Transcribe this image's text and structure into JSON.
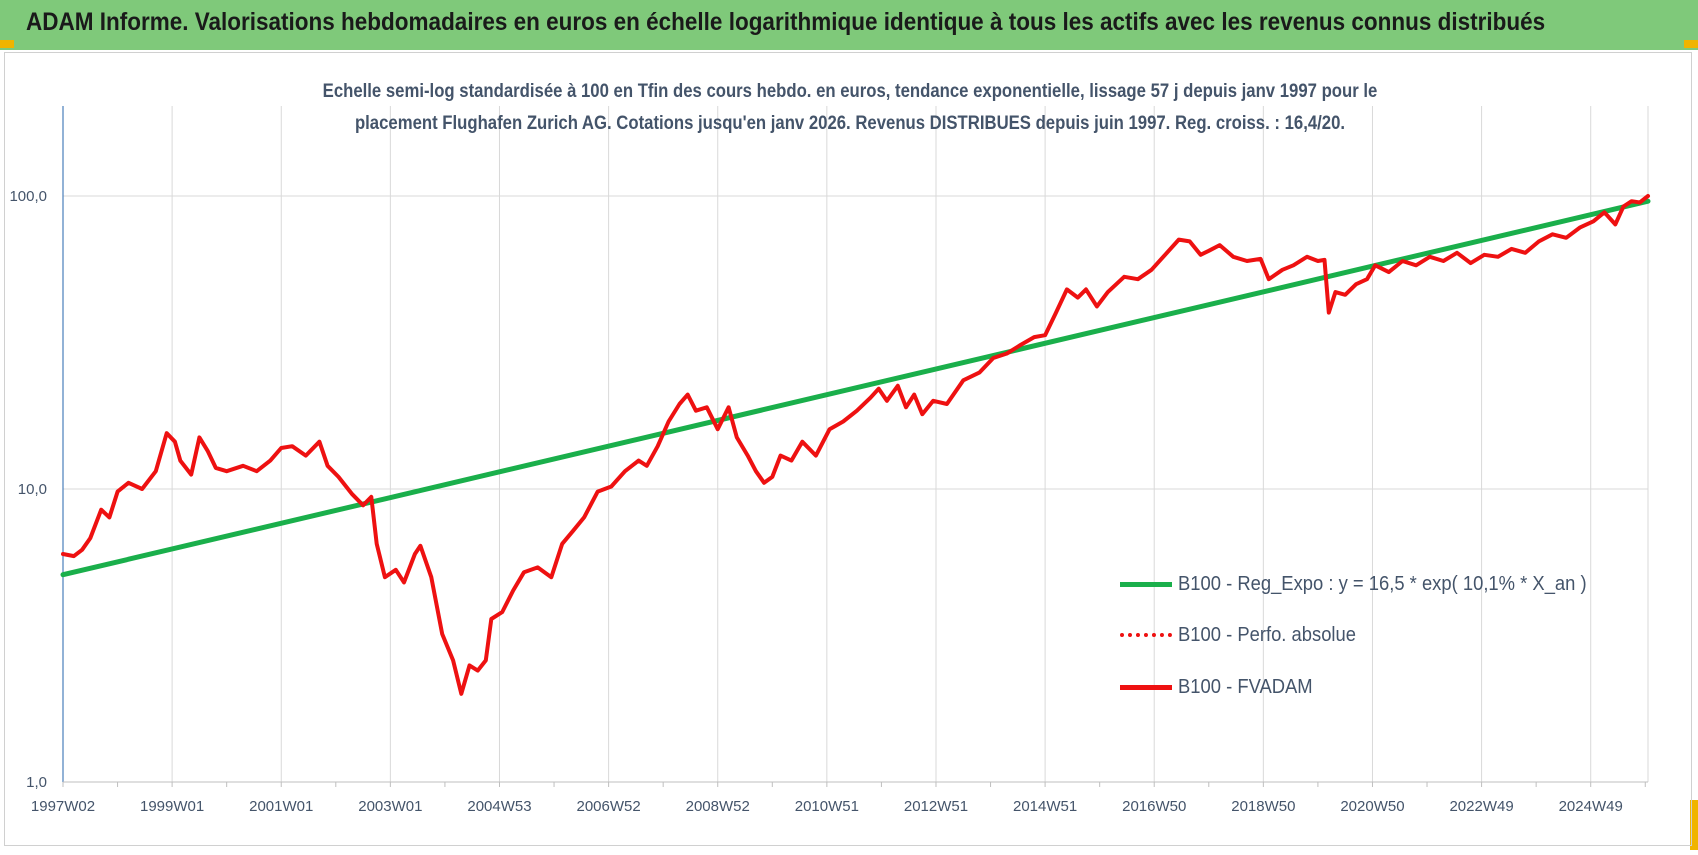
{
  "banner": {
    "title": "ADAM Informe. Valorisations hebdomadaires en euros en échelle logarithmique identique à tous les actifs avec les revenus connus distribués"
  },
  "colors": {
    "banner": "#7fc97a",
    "corner": "#f0b400",
    "regression": "#1aaf4b",
    "fvadam": "#ee1111",
    "perf": "#ee1111",
    "text": "#44546a",
    "grid": "#d9d9d9",
    "axis": "#4a7ebb"
  },
  "chart_data": {
    "type": "line",
    "title": "Echelle semi-log standardisée à 100 en Tfin des cours hebdo. en euros, tendance exponentielle, lissage 57 j depuis janv 1997 pour le placement Flughafen Zurich AG. Cotations jusqu'en janv 2026. Revenus DISTRIBUES depuis juin 1997. Reg. croiss. : 16,4/20.",
    "title_lines": [
      "Echelle semi-log standardisée à 100 en Tfin des cours hebdo. en euros, tendance exponentielle, lissage 57 j depuis janv 1997 pour le",
      "placement Flughafen Zurich AG. Cotations jusqu'en janv 2026. Revenus DISTRIBUES depuis juin 1997. Reg. croiss. : 16,4/20."
    ],
    "y_scale": "log",
    "ylim": [
      1,
      200
    ],
    "xlim": [
      1997.0,
      2026.05
    ],
    "grid": true,
    "legend_position": "right",
    "y_ticks": [
      {
        "value": 1,
        "label": "1,0"
      },
      {
        "value": 10,
        "label": "10,0"
      },
      {
        "value": 100,
        "label": "100,0"
      }
    ],
    "x_ticks": [
      {
        "value": 1997.0,
        "label": "1997W02"
      },
      {
        "value": 1999.0,
        "label": "1999W01"
      },
      {
        "value": 2001.0,
        "label": "2001W01"
      },
      {
        "value": 2003.0,
        "label": "2003W01"
      },
      {
        "value": 2005.0,
        "label": "2004W53"
      },
      {
        "value": 2007.0,
        "label": "2006W52"
      },
      {
        "value": 2009.0,
        "label": "2008W52"
      },
      {
        "value": 2011.0,
        "label": "2010W51"
      },
      {
        "value": 2013.0,
        "label": "2012W51"
      },
      {
        "value": 2015.0,
        "label": "2014W51"
      },
      {
        "value": 2017.0,
        "label": "2016W50"
      },
      {
        "value": 2019.0,
        "label": "2018W50"
      },
      {
        "value": 2021.0,
        "label": "2020W50"
      },
      {
        "value": 2023.0,
        "label": "2022W49"
      },
      {
        "value": 2025.0,
        "label": "2024W49"
      }
    ],
    "series": [
      {
        "name": "B100 - Reg_Expo : y = 16,5 * exp( 10,1% *  X_an )",
        "style": "solid-green",
        "points": [
          [
            1997.0,
            5.1
          ],
          [
            2026.05,
            96.0
          ]
        ]
      },
      {
        "name": "B100 - Perfo. absolue",
        "style": "dotted-red",
        "points": []
      },
      {
        "name": "B100 - FVADAM",
        "style": "solid-red",
        "points": [
          [
            1997.0,
            6.0
          ],
          [
            1997.2,
            5.9
          ],
          [
            1997.35,
            6.2
          ],
          [
            1997.5,
            6.8
          ],
          [
            1997.7,
            8.5
          ],
          [
            1997.85,
            8.0
          ],
          [
            1998.0,
            9.8
          ],
          [
            1998.2,
            10.5
          ],
          [
            1998.45,
            10.0
          ],
          [
            1998.7,
            11.5
          ],
          [
            1998.9,
            15.5
          ],
          [
            1999.05,
            14.5
          ],
          [
            1999.15,
            12.5
          ],
          [
            1999.35,
            11.2
          ],
          [
            1999.5,
            15.0
          ],
          [
            1999.65,
            13.5
          ],
          [
            1999.8,
            11.8
          ],
          [
            2000.0,
            11.5
          ],
          [
            2000.3,
            12.0
          ],
          [
            2000.55,
            11.5
          ],
          [
            2000.8,
            12.5
          ],
          [
            2001.0,
            13.8
          ],
          [
            2001.2,
            14.0
          ],
          [
            2001.45,
            13.0
          ],
          [
            2001.7,
            14.5
          ],
          [
            2001.85,
            12.0
          ],
          [
            2002.05,
            11.0
          ],
          [
            2002.3,
            9.6
          ],
          [
            2002.5,
            8.8
          ],
          [
            2002.65,
            9.4
          ],
          [
            2002.75,
            6.5
          ],
          [
            2002.9,
            5.0
          ],
          [
            2003.1,
            5.3
          ],
          [
            2003.25,
            4.8
          ],
          [
            2003.45,
            6.0
          ],
          [
            2003.55,
            6.4
          ],
          [
            2003.75,
            5.0
          ],
          [
            2003.95,
            3.2
          ],
          [
            2004.15,
            2.6
          ],
          [
            2004.3,
            2.0
          ],
          [
            2004.45,
            2.5
          ],
          [
            2004.6,
            2.4
          ],
          [
            2004.75,
            2.6
          ],
          [
            2004.85,
            3.6
          ],
          [
            2005.05,
            3.8
          ],
          [
            2005.25,
            4.5
          ],
          [
            2005.45,
            5.2
          ],
          [
            2005.7,
            5.4
          ],
          [
            2005.95,
            5.0
          ],
          [
            2006.15,
            6.5
          ],
          [
            2006.35,
            7.2
          ],
          [
            2006.55,
            8.0
          ],
          [
            2006.8,
            9.8
          ],
          [
            2007.05,
            10.2
          ],
          [
            2007.3,
            11.5
          ],
          [
            2007.55,
            12.5
          ],
          [
            2007.7,
            12.0
          ],
          [
            2007.9,
            14.0
          ],
          [
            2008.1,
            17.0
          ],
          [
            2008.3,
            19.5
          ],
          [
            2008.45,
            21.0
          ],
          [
            2008.6,
            18.5
          ],
          [
            2008.8,
            19.0
          ],
          [
            2009.0,
            16.0
          ],
          [
            2009.2,
            19.0
          ],
          [
            2009.35,
            15.0
          ],
          [
            2009.55,
            13.0
          ],
          [
            2009.7,
            11.5
          ],
          [
            2009.85,
            10.5
          ],
          [
            2010.0,
            11.0
          ],
          [
            2010.15,
            13.0
          ],
          [
            2010.35,
            12.5
          ],
          [
            2010.55,
            14.5
          ],
          [
            2010.8,
            13.0
          ],
          [
            2011.05,
            16.0
          ],
          [
            2011.3,
            17.0
          ],
          [
            2011.55,
            18.5
          ],
          [
            2011.8,
            20.5
          ],
          [
            2011.95,
            22.0
          ],
          [
            2012.1,
            20.0
          ],
          [
            2012.3,
            22.5
          ],
          [
            2012.45,
            19.0
          ],
          [
            2012.6,
            21.0
          ],
          [
            2012.75,
            18.0
          ],
          [
            2012.95,
            20.0
          ],
          [
            2013.2,
            19.5
          ],
          [
            2013.5,
            23.5
          ],
          [
            2013.8,
            25.0
          ],
          [
            2014.05,
            28.0
          ],
          [
            2014.3,
            29.0
          ],
          [
            2014.55,
            31.0
          ],
          [
            2014.8,
            33.0
          ],
          [
            2015.0,
            33.5
          ],
          [
            2015.2,
            40.0
          ],
          [
            2015.4,
            48.0
          ],
          [
            2015.6,
            45.0
          ],
          [
            2015.75,
            48.0
          ],
          [
            2015.95,
            42.0
          ],
          [
            2016.15,
            47.0
          ],
          [
            2016.45,
            53.0
          ],
          [
            2016.7,
            52.0
          ],
          [
            2016.95,
            56.0
          ],
          [
            2017.2,
            63.0
          ],
          [
            2017.45,
            71.0
          ],
          [
            2017.65,
            70.0
          ],
          [
            2017.85,
            63.0
          ],
          [
            2018.0,
            65.0
          ],
          [
            2018.2,
            68.0
          ],
          [
            2018.45,
            62.0
          ],
          [
            2018.7,
            60.0
          ],
          [
            2018.95,
            61.0
          ],
          [
            2019.1,
            52.0
          ],
          [
            2019.35,
            56.0
          ],
          [
            2019.55,
            58.0
          ],
          [
            2019.8,
            62.0
          ],
          [
            2020.0,
            60.0
          ],
          [
            2020.12,
            60.5
          ],
          [
            2020.2,
            40.0
          ],
          [
            2020.32,
            47.0
          ],
          [
            2020.5,
            46.0
          ],
          [
            2020.7,
            50.0
          ],
          [
            2020.9,
            52.0
          ],
          [
            2021.05,
            58.0
          ],
          [
            2021.3,
            55.0
          ],
          [
            2021.55,
            60.0
          ],
          [
            2021.8,
            58.0
          ],
          [
            2022.05,
            62.0
          ],
          [
            2022.3,
            60.0
          ],
          [
            2022.55,
            64.0
          ],
          [
            2022.8,
            59.0
          ],
          [
            2023.05,
            63.0
          ],
          [
            2023.3,
            62.0
          ],
          [
            2023.55,
            66.0
          ],
          [
            2023.8,
            64.0
          ],
          [
            2024.05,
            70.0
          ],
          [
            2024.3,
            74.0
          ],
          [
            2024.55,
            72.0
          ],
          [
            2024.8,
            78.0
          ],
          [
            2025.05,
            82.0
          ],
          [
            2025.25,
            88.0
          ],
          [
            2025.45,
            80.0
          ],
          [
            2025.6,
            92.0
          ],
          [
            2025.75,
            96.0
          ],
          [
            2025.9,
            95.0
          ],
          [
            2026.05,
            100.0
          ]
        ]
      }
    ]
  }
}
